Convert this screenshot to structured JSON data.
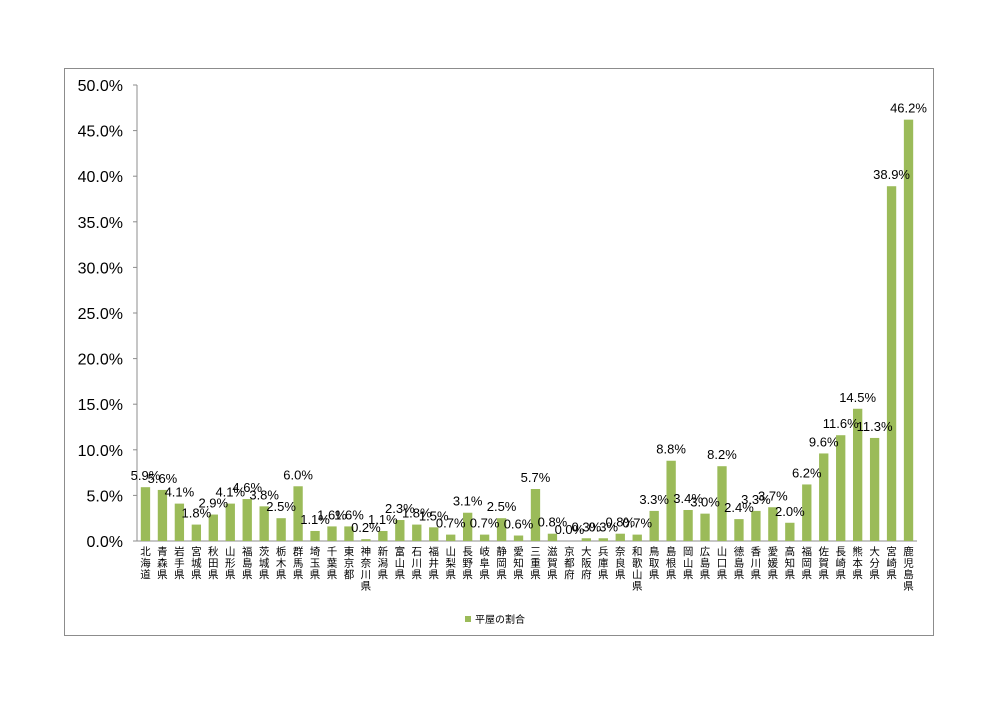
{
  "chart_data": {
    "type": "bar",
    "title": "",
    "xlabel": "",
    "ylabel": "",
    "ylim": [
      0,
      0.5
    ],
    "yticks": [
      "0.0%",
      "5.0%",
      "10.0%",
      "15.0%",
      "20.0%",
      "25.0%",
      "30.0%",
      "35.0%",
      "40.0%",
      "45.0%",
      "50.0%"
    ],
    "grid": false,
    "legend_position": "bottom",
    "bar_color": "#9bbb59",
    "categories": [
      "北海道",
      "青森県",
      "岩手県",
      "宮城県",
      "秋田県",
      "山形県",
      "福島県",
      "茨城県",
      "栃木県",
      "群馬県",
      "埼玉県",
      "千葉県",
      "東京都",
      "神奈川県",
      "新潟県",
      "富山県",
      "石川県",
      "福井県",
      "山梨県",
      "長野県",
      "岐阜県",
      "静岡県",
      "愛知県",
      "三重県",
      "滋賀県",
      "京都府",
      "大阪府",
      "兵庫県",
      "奈良県",
      "和歌山県",
      "鳥取県",
      "島根県",
      "岡山県",
      "広島県",
      "山口県",
      "徳島県",
      "香川県",
      "愛媛県",
      "高知県",
      "福岡県",
      "佐賀県",
      "長崎県",
      "熊本県",
      "大分県",
      "宮崎県",
      "鹿児島県"
    ],
    "series": [
      {
        "name": "平屋の割合",
        "values": [
          0.059,
          0.056,
          0.041,
          0.018,
          0.029,
          0.041,
          0.046,
          0.038,
          0.025,
          0.06,
          0.011,
          0.016,
          0.016,
          0.002,
          0.011,
          0.023,
          0.018,
          0.015,
          0.007,
          0.031,
          0.007,
          0.025,
          0.006,
          0.057,
          0.008,
          0.0,
          0.003,
          0.003,
          0.008,
          0.007,
          0.033,
          0.088,
          0.034,
          0.03,
          0.082,
          0.024,
          0.033,
          0.037,
          0.02,
          0.062,
          0.096,
          0.116,
          0.145,
          0.113,
          0.389,
          0.462
        ],
        "labels": [
          "5.9%",
          "5.6%",
          "4.1%",
          "1.8%",
          "2.9%",
          "4.1%",
          "4.6%",
          "3.8%",
          "2.5%",
          "6.0%",
          "1.1%",
          "1.6%",
          "1.6%",
          "0.2%",
          "1.1%",
          "2.3%",
          "1.8%",
          "1.5%",
          "0.7%",
          "3.1%",
          "0.7%",
          "2.5%",
          "0.6%",
          "5.7%",
          "0.8%",
          "0.0%",
          "0.3%",
          "0.3%",
          "0.8%",
          "0.7%",
          "3.3%",
          "8.8%",
          "3.4%",
          "3.0%",
          "8.2%",
          "2.4%",
          "3.3%",
          "3.7%",
          "2.0%",
          "6.2%",
          "9.6%",
          "11.6%",
          "14.5%",
          "11.3%",
          "38.9%",
          "46.2%"
        ]
      }
    ]
  }
}
